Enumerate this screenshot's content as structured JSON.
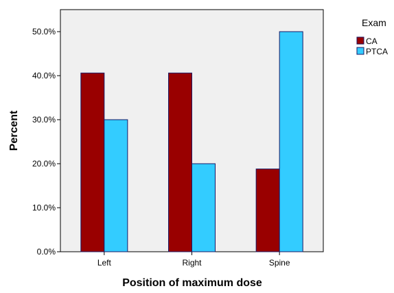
{
  "chart_data": {
    "type": "bar",
    "title": "",
    "xlabel": "Position of maximum dose",
    "ylabel": "Percent",
    "categories": [
      "Left",
      "Right",
      "Spine"
    ],
    "series": [
      {
        "name": "CA",
        "values": [
          40.6,
          40.6,
          18.8
        ],
        "color": "#990000"
      },
      {
        "name": "PTCA",
        "values": [
          30.0,
          20.0,
          50.0
        ],
        "color": "#33ccff"
      }
    ],
    "ylim": [
      0,
      55
    ],
    "yticks": [
      0,
      10,
      20,
      30,
      40,
      50
    ],
    "ytick_labels": [
      "0.0%",
      "10.0%",
      "20.0%",
      "30.0%",
      "40.0%",
      "50.0%"
    ],
    "grid": false,
    "legend": {
      "title": "Exam",
      "position": "top-right, outside plot"
    },
    "plot_background": "#f0f0f0",
    "bar_border_color": "#1a1a66"
  }
}
